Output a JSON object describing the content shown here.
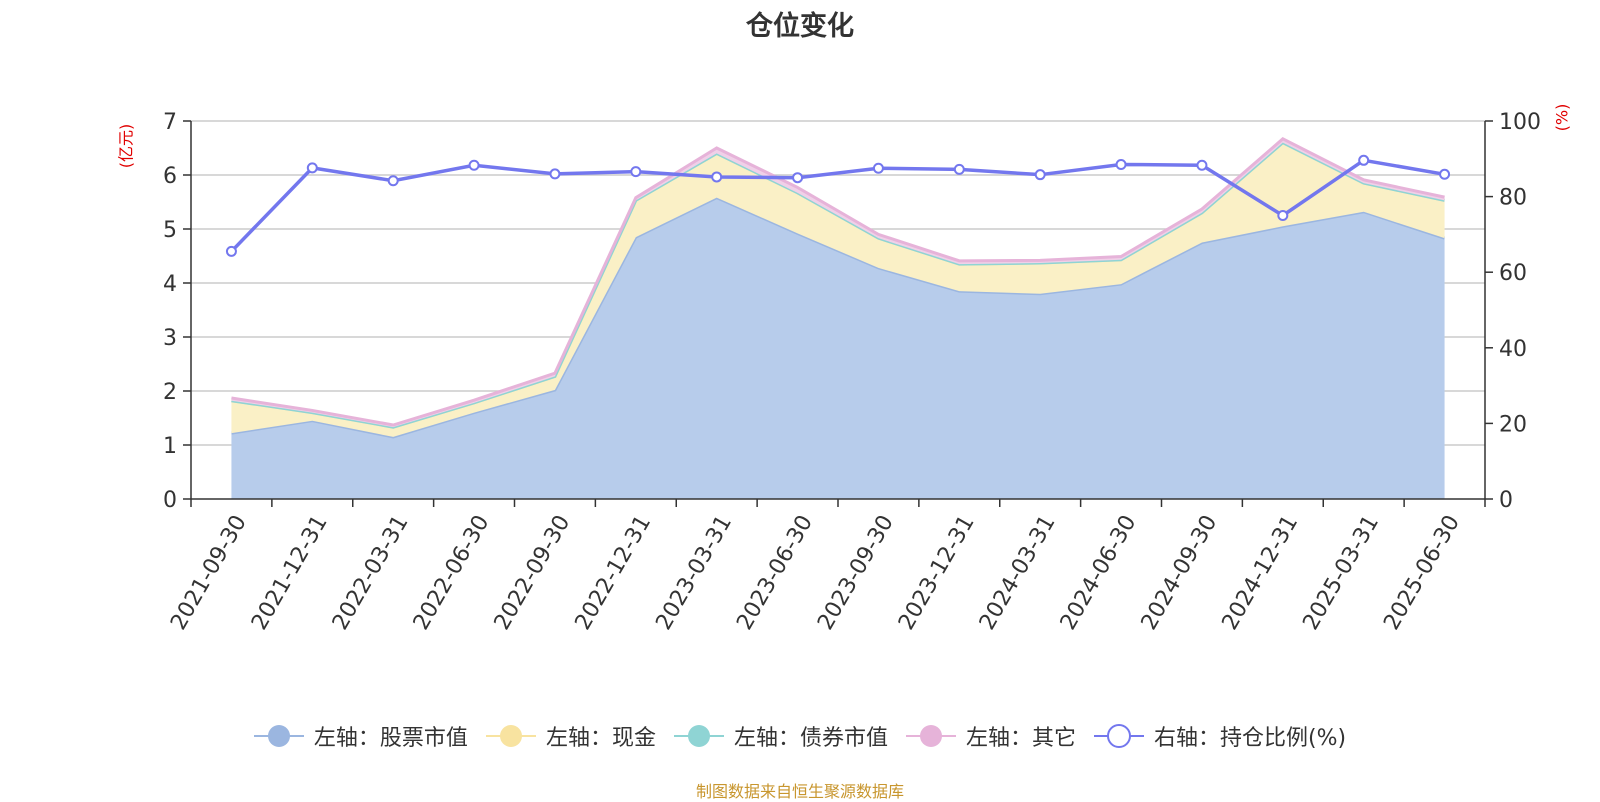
{
  "page": {
    "title": "仓位变化",
    "footer": "制图数据来自恒生聚源数据库",
    "left_unit": "(亿元)",
    "right_unit": "(%)"
  },
  "chart_data": {
    "type": "area",
    "title": "仓位变化",
    "categories": [
      "2021-09-30",
      "2021-12-31",
      "2022-03-31",
      "2022-06-30",
      "2022-09-30",
      "2022-12-31",
      "2023-03-31",
      "2023-06-30",
      "2023-09-30",
      "2023-12-31",
      "2024-03-31",
      "2024-06-30",
      "2024-09-30",
      "2024-12-31",
      "2025-03-31",
      "2025-06-30"
    ],
    "left_axis": {
      "label": "(亿元)",
      "ylim": [
        0,
        7
      ],
      "ticks": [
        "0",
        "1",
        "2",
        "3",
        "4",
        "5",
        "6",
        "7"
      ]
    },
    "right_axis": {
      "label": "(%)",
      "ylim": [
        0,
        100
      ],
      "ticks": [
        "0",
        "20",
        "40",
        "60",
        "80",
        "100"
      ]
    },
    "grid": true,
    "legend_position": "bottom",
    "series": [
      {
        "name": "左轴：股票市值",
        "axis": "left",
        "type": "area",
        "stacked": true,
        "color": "#9bb6e0",
        "fill": "#b7cceb",
        "values": [
          1.22,
          1.45,
          1.15,
          1.6,
          2.02,
          4.85,
          5.58,
          4.92,
          4.28,
          3.85,
          3.8,
          3.98,
          4.75,
          5.05,
          5.32,
          4.83
        ]
      },
      {
        "name": "左轴：现金",
        "axis": "left",
        "type": "area",
        "stacked": true,
        "color": "#f8e3a0",
        "fill": "#faf0c6",
        "values": [
          0.6,
          0.15,
          0.18,
          0.18,
          0.25,
          0.68,
          0.82,
          0.75,
          0.55,
          0.5,
          0.57,
          0.45,
          0.55,
          1.55,
          0.53,
          0.7
        ]
      },
      {
        "name": "左轴：债券市值",
        "axis": "left",
        "type": "area",
        "stacked": true,
        "color": "#8fd4d4",
        "fill": "#bfe6e6",
        "values": [
          0,
          0,
          0,
          0,
          0,
          0,
          0,
          0,
          0,
          0,
          0,
          0,
          0,
          0,
          0,
          0
        ]
      },
      {
        "name": "左轴：其它",
        "axis": "left",
        "type": "area",
        "stacked": true,
        "color": "#e6b3d9",
        "fill": "#f0d0e8",
        "values": [
          0.05,
          0.04,
          0.04,
          0.05,
          0.06,
          0.05,
          0.1,
          0.1,
          0.07,
          0.06,
          0.05,
          0.06,
          0.07,
          0.07,
          0.06,
          0.06
        ]
      },
      {
        "name": "右轴：持仓比例(%)",
        "axis": "right",
        "type": "line",
        "color": "#7377ee",
        "values": [
          65.5,
          87.6,
          84.2,
          88.3,
          86.0,
          86.6,
          85.2,
          85.0,
          87.5,
          87.2,
          85.8,
          88.5,
          88.3,
          75.0,
          89.6,
          85.9
        ]
      }
    ]
  }
}
